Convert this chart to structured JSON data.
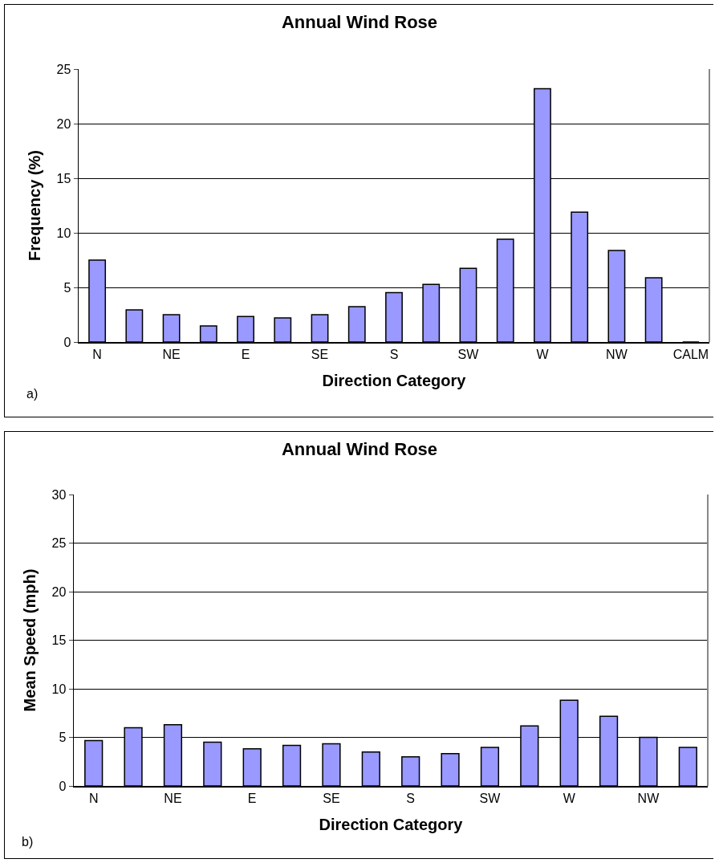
{
  "chart_data": [
    {
      "type": "bar",
      "title": "Annual Wind Rose",
      "xlabel": "Direction Category",
      "ylabel": "Frequency (%)",
      "annotations": [
        "a)"
      ],
      "categories": [
        "N",
        null,
        "NE",
        null,
        "E",
        null,
        "SE",
        null,
        "S",
        null,
        "SW",
        null,
        "W",
        null,
        "NW",
        null,
        "CALM"
      ],
      "values": [
        7.5,
        2.94,
        2.5,
        1.47,
        2.33,
        2.2,
        2.5,
        3.24,
        4.53,
        5.27,
        6.74,
        9.41,
        23.2,
        11.9,
        8.38,
        5.88,
        0
      ],
      "color": "#9999ff",
      "ylim": [
        0,
        25
      ],
      "yticks": [
        0,
        5,
        10,
        15,
        20,
        25
      ],
      "grid": "y"
    },
    {
      "type": "bar",
      "title": "Annual Wind Rose",
      "xlabel": "Direction Category",
      "ylabel": "Mean Speed (mph)",
      "annotations": [
        "b)"
      ],
      "categories": [
        "N",
        null,
        "NE",
        null,
        "E",
        null,
        "SE",
        null,
        "S",
        null,
        "SW",
        null,
        "W",
        null,
        "NW",
        null
      ],
      "values": [
        4.67,
        6.0,
        6.3,
        4.5,
        3.83,
        4.17,
        4.33,
        3.5,
        3.0,
        3.33,
        3.97,
        6.17,
        8.83,
        7.17,
        5.0,
        3.97
      ],
      "color": "#9999ff",
      "ylim": [
        0,
        30
      ],
      "yticks": [
        0,
        5,
        10,
        15,
        20,
        25,
        30
      ],
      "grid": "y"
    }
  ]
}
